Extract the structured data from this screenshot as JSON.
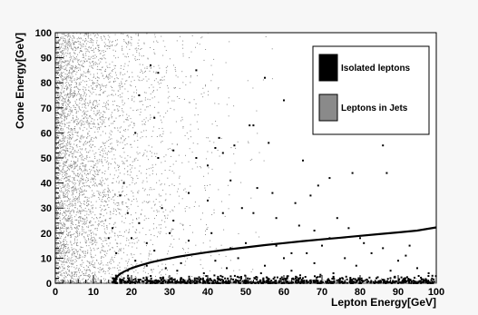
{
  "chart_data": {
    "type": "scatter",
    "title": "",
    "xlabel": "Lepton Energy[GeV]",
    "ylabel": "Cone Energy[GeV]",
    "xlim": [
      0,
      100
    ],
    "ylim": [
      0,
      100
    ],
    "x_ticks": [
      "0",
      "10",
      "20",
      "30",
      "40",
      "50",
      "60",
      "70",
      "80",
      "90",
      "100"
    ],
    "y_ticks": [
      "0",
      "10",
      "20",
      "30",
      "40",
      "50",
      "60",
      "70",
      "80",
      "90",
      "100"
    ],
    "grid": false,
    "legend_position": "top-right",
    "series": [
      {
        "name": "Isolated leptons",
        "color": "#000000",
        "points": [
          [
            25,
            87
          ],
          [
            27,
            84
          ],
          [
            37,
            85
          ],
          [
            55,
            82
          ],
          [
            60,
            73
          ],
          [
            26,
            66
          ],
          [
            22,
            75
          ],
          [
            21,
            60
          ],
          [
            52,
            63
          ],
          [
            51,
            63
          ],
          [
            43,
            58
          ],
          [
            56,
            56
          ],
          [
            47,
            55
          ],
          [
            42,
            54
          ],
          [
            44,
            52
          ],
          [
            86,
            55
          ],
          [
            37,
            50
          ],
          [
            65,
            49
          ],
          [
            40,
            47
          ],
          [
            72,
            42
          ],
          [
            87,
            44
          ],
          [
            78,
            44
          ],
          [
            27,
            50
          ],
          [
            31,
            53
          ],
          [
            46,
            41
          ],
          [
            53,
            38
          ],
          [
            69,
            39
          ],
          [
            57,
            36
          ],
          [
            63,
            32
          ],
          [
            52,
            28
          ],
          [
            67,
            35
          ],
          [
            49,
            30
          ],
          [
            44,
            28
          ],
          [
            31,
            25
          ],
          [
            58,
            26
          ],
          [
            74,
            26
          ],
          [
            77,
            22
          ],
          [
            80,
            18
          ],
          [
            72,
            18
          ],
          [
            64,
            23
          ],
          [
            40,
            33
          ],
          [
            35,
            36
          ],
          [
            28,
            30
          ],
          [
            22,
            24
          ],
          [
            19,
            28
          ],
          [
            20,
            18
          ],
          [
            24,
            16
          ],
          [
            26,
            13
          ],
          [
            30,
            20
          ],
          [
            18,
            40
          ],
          [
            17,
            35
          ],
          [
            15,
            22
          ],
          [
            14,
            18
          ],
          [
            16,
            12
          ],
          [
            83,
            12
          ],
          [
            90,
            9
          ],
          [
            95,
            6
          ],
          [
            68,
            8
          ],
          [
            60,
            10
          ],
          [
            55,
            7
          ],
          [
            48,
            10
          ],
          [
            42,
            9
          ],
          [
            38,
            12
          ],
          [
            33,
            8
          ],
          [
            29,
            6
          ],
          [
            70,
            15
          ],
          [
            76,
            10
          ],
          [
            86,
            14
          ],
          [
            93,
            15
          ],
          [
            98,
            4
          ],
          [
            46,
            14
          ],
          [
            58,
            15
          ],
          [
            62,
            5
          ],
          [
            35,
            17
          ],
          [
            41,
            20
          ],
          [
            50,
            16
          ],
          [
            66,
            12
          ],
          [
            88,
            5
          ],
          [
            79,
            7
          ],
          [
            73,
            4
          ],
          [
            45,
            6
          ],
          [
            39,
            4
          ],
          [
            32,
            5
          ],
          [
            24,
            7
          ],
          [
            21,
            9
          ],
          [
            19,
            5
          ],
          [
            54,
            4
          ],
          [
            62,
            12
          ],
          [
            68,
            21
          ],
          [
            81,
            16
          ],
          [
            92,
            11
          ]
        ]
      },
      {
        "name": "Leptons in Jets",
        "color": "#8a8a8a",
        "points": []
      }
    ],
    "curve": {
      "name": "",
      "color": "#000000",
      "x": [
        15.5,
        16,
        17,
        18,
        20,
        22,
        25,
        28,
        32,
        36,
        40,
        45,
        50,
        55,
        60,
        65,
        70,
        75,
        80,
        85,
        90,
        95,
        100
      ],
      "y": [
        0.5,
        2.4,
        3.7,
        4.6,
        6.0,
        7.0,
        8.3,
        9.3,
        10.5,
        11.5,
        12.4,
        13.4,
        14.3,
        15.2,
        16.0,
        16.8,
        17.5,
        18.2,
        18.9,
        19.6,
        20.3,
        21.0,
        22.3
      ]
    }
  }
}
